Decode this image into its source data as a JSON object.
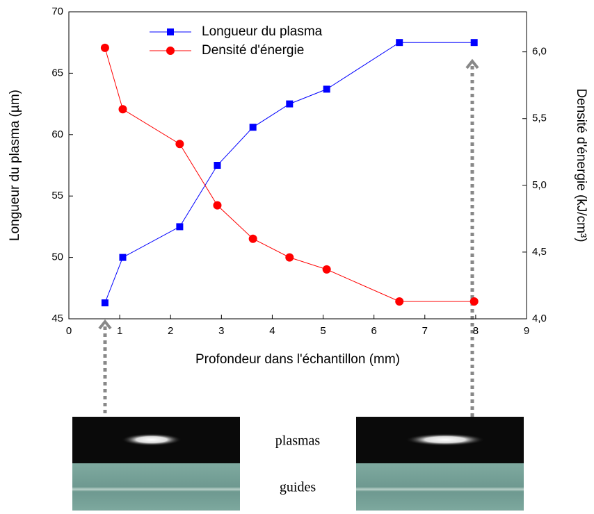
{
  "chart_data": {
    "type": "line",
    "x": [
      0.71,
      1.06,
      2.18,
      2.92,
      3.62,
      4.34,
      5.07,
      6.5,
      7.97
    ],
    "series": [
      {
        "name": "Longueur du plasma",
        "color": "#0000ff",
        "marker": "square",
        "values": [
          46.3,
          50.0,
          52.5,
          57.5,
          60.6,
          62.5,
          63.7,
          67.5,
          67.5
        ]
      },
      {
        "name": "Densité d'énergie",
        "color": "#ff0000",
        "marker": "circle",
        "axis": "y2",
        "values": [
          6.03,
          5.57,
          5.31,
          4.85,
          4.6,
          4.46,
          4.37,
          4.13,
          4.13
        ]
      }
    ],
    "xlabel": "Profondeur dans l'échantillon (mm)",
    "ylabel": "Longueur du plasma (µm)",
    "y2label": "Densité d'énergie (kJ/cm³)",
    "xlim": [
      0,
      9
    ],
    "xticks": [
      0,
      1,
      2,
      3,
      4,
      5,
      6,
      7,
      8,
      9
    ],
    "ylim": [
      45,
      70
    ],
    "yticks": [
      45,
      50,
      55,
      60,
      65,
      70
    ],
    "y2lim": [
      4,
      6.3
    ],
    "y2ticks": [
      {
        "value": 4,
        "label": "4,0"
      },
      {
        "value": 4.5,
        "label": "4,5"
      },
      {
        "value": 5,
        "label": "5,0"
      },
      {
        "value": 5.5,
        "label": "5,5"
      },
      {
        "value": 6,
        "label": "6,0"
      }
    ],
    "legend": "top"
  },
  "images": {
    "plasma_label": "plasmas",
    "guide_label": "guides"
  }
}
